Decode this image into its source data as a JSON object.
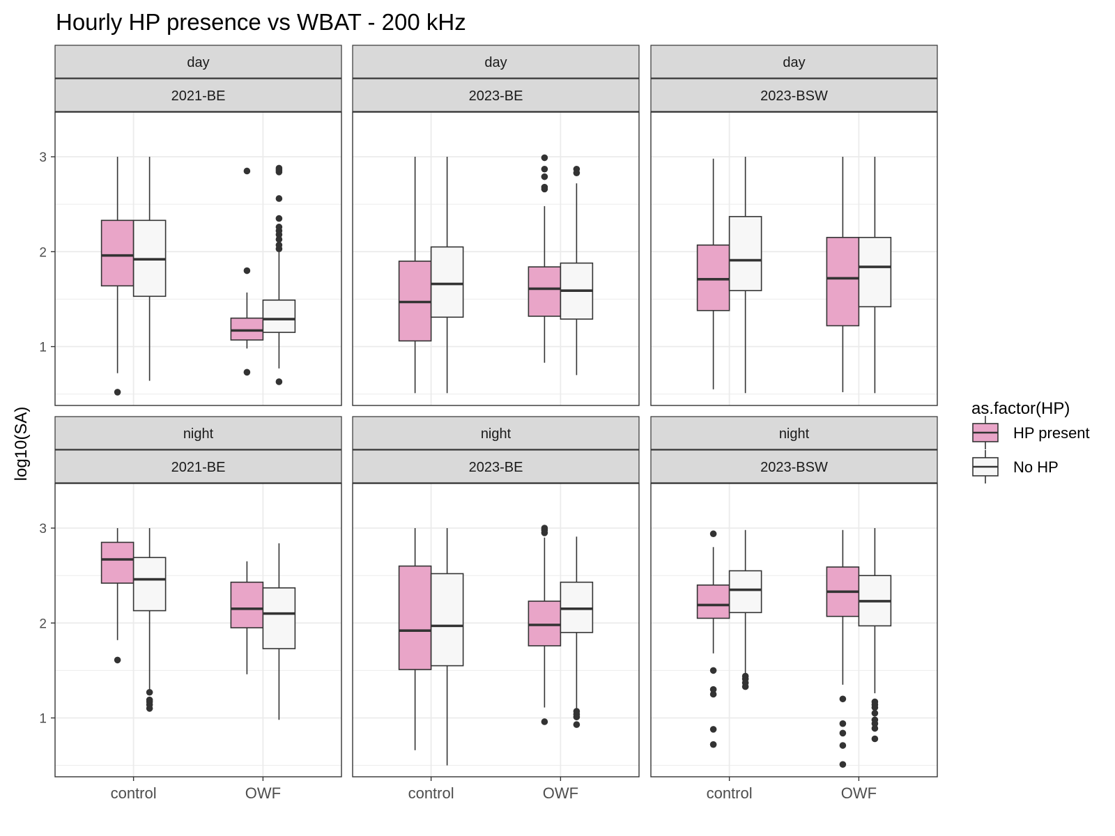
{
  "chart_data": {
    "type": "boxplot",
    "title": "Hourly HP presence vs WBAT - 200 kHz",
    "ylabel": "log10(SA)",
    "xlabel": "",
    "ylim": [
      0.38,
      3.47
    ],
    "y_ticks": [
      1,
      2,
      3
    ],
    "categories": [
      "control",
      "OWF"
    ],
    "grid": true,
    "legend": {
      "title": "as.factor(HP)",
      "position": "right",
      "entries": [
        {
          "label": "HP present",
          "color": "#E9A5C8"
        },
        {
          "label": "No HP",
          "color": "#F7F7F7"
        }
      ]
    },
    "colors": {
      "HP present": "#E9A5C8",
      "No HP": "#F7F7F7",
      "strip": "#D9D9D9",
      "grid": "#EBEBEB",
      "stroke": "#333333"
    },
    "panels": [
      {
        "time": "day",
        "site": "2021-BE",
        "boxes": [
          {
            "category": "control",
            "group": "HP present",
            "lower_whisker": 0.72,
            "q1": 1.64,
            "median": 1.96,
            "q3": 2.33,
            "upper_whisker": 3.0,
            "outliers": [
              0.52
            ]
          },
          {
            "category": "control",
            "group": "No HP",
            "lower_whisker": 0.64,
            "q1": 1.53,
            "median": 1.92,
            "q3": 2.33,
            "upper_whisker": 3.0,
            "outliers": []
          },
          {
            "category": "OWF",
            "group": "HP present",
            "lower_whisker": 0.98,
            "q1": 1.07,
            "median": 1.17,
            "q3": 1.3,
            "upper_whisker": 1.57,
            "outliers": [
              0.73,
              1.8,
              2.85
            ]
          },
          {
            "category": "OWF",
            "group": "No HP",
            "lower_whisker": 0.77,
            "q1": 1.15,
            "median": 1.29,
            "q3": 1.49,
            "upper_whisker": 2.0,
            "outliers": [
              0.63,
              2.03,
              2.07,
              2.13,
              2.18,
              2.22,
              2.26,
              2.35,
              2.56,
              2.84,
              2.86,
              2.88
            ]
          }
        ]
      },
      {
        "time": "day",
        "site": "2023-BE",
        "boxes": [
          {
            "category": "control",
            "group": "HP present",
            "lower_whisker": 0.51,
            "q1": 1.06,
            "median": 1.47,
            "q3": 1.9,
            "upper_whisker": 3.0,
            "outliers": []
          },
          {
            "category": "control",
            "group": "No HP",
            "lower_whisker": 0.51,
            "q1": 1.31,
            "median": 1.66,
            "q3": 2.05,
            "upper_whisker": 3.0,
            "outliers": []
          },
          {
            "category": "OWF",
            "group": "HP present",
            "lower_whisker": 0.83,
            "q1": 1.32,
            "median": 1.61,
            "q3": 1.84,
            "upper_whisker": 2.48,
            "outliers": [
              2.66,
              2.68,
              2.79,
              2.87,
              2.99
            ]
          },
          {
            "category": "OWF",
            "group": "No HP",
            "lower_whisker": 0.7,
            "q1": 1.29,
            "median": 1.59,
            "q3": 1.88,
            "upper_whisker": 2.72,
            "outliers": [
              2.83,
              2.87
            ]
          }
        ]
      },
      {
        "time": "day",
        "site": "2023-BSW",
        "boxes": [
          {
            "category": "control",
            "group": "HP present",
            "lower_whisker": 0.55,
            "q1": 1.38,
            "median": 1.71,
            "q3": 2.07,
            "upper_whisker": 2.98,
            "outliers": []
          },
          {
            "category": "control",
            "group": "No HP",
            "lower_whisker": 0.51,
            "q1": 1.59,
            "median": 1.91,
            "q3": 2.37,
            "upper_whisker": 3.0,
            "outliers": []
          },
          {
            "category": "OWF",
            "group": "HP present",
            "lower_whisker": 0.52,
            "q1": 1.22,
            "median": 1.72,
            "q3": 2.15,
            "upper_whisker": 3.0,
            "outliers": []
          },
          {
            "category": "OWF",
            "group": "No HP",
            "lower_whisker": 0.51,
            "q1": 1.42,
            "median": 1.84,
            "q3": 2.15,
            "upper_whisker": 3.0,
            "outliers": []
          }
        ]
      },
      {
        "time": "night",
        "site": "2021-BE",
        "boxes": [
          {
            "category": "control",
            "group": "HP present",
            "lower_whisker": 1.82,
            "q1": 2.42,
            "median": 2.67,
            "q3": 2.85,
            "upper_whisker": 3.0,
            "outliers": [
              1.61
            ]
          },
          {
            "category": "control",
            "group": "No HP",
            "lower_whisker": 1.29,
            "q1": 2.13,
            "median": 2.46,
            "q3": 2.69,
            "upper_whisker": 3.0,
            "outliers": [
              1.1,
              1.14,
              1.17,
              1.19,
              1.27
            ]
          },
          {
            "category": "OWF",
            "group": "HP present",
            "lower_whisker": 1.46,
            "q1": 1.95,
            "median": 2.15,
            "q3": 2.43,
            "upper_whisker": 2.65,
            "outliers": []
          },
          {
            "category": "OWF",
            "group": "No HP",
            "lower_whisker": 0.98,
            "q1": 1.73,
            "median": 2.1,
            "q3": 2.37,
            "upper_whisker": 2.84,
            "outliers": []
          }
        ]
      },
      {
        "time": "night",
        "site": "2023-BE",
        "boxes": [
          {
            "category": "control",
            "group": "HP present",
            "lower_whisker": 0.66,
            "q1": 1.51,
            "median": 1.92,
            "q3": 2.6,
            "upper_whisker": 3.0,
            "outliers": []
          },
          {
            "category": "control",
            "group": "No HP",
            "lower_whisker": 0.5,
            "q1": 1.55,
            "median": 1.97,
            "q3": 2.52,
            "upper_whisker": 3.0,
            "outliers": []
          },
          {
            "category": "OWF",
            "group": "HP present",
            "lower_whisker": 1.11,
            "q1": 1.76,
            "median": 1.98,
            "q3": 2.23,
            "upper_whisker": 2.9,
            "outliers": [
              0.96,
              2.95,
              2.98,
              3.0
            ]
          },
          {
            "category": "OWF",
            "group": "No HP",
            "lower_whisker": 1.09,
            "q1": 1.9,
            "median": 2.15,
            "q3": 2.43,
            "upper_whisker": 2.91,
            "outliers": [
              0.93,
              1.01,
              1.04,
              1.07
            ]
          }
        ]
      },
      {
        "time": "night",
        "site": "2023-BSW",
        "boxes": [
          {
            "category": "control",
            "group": "HP present",
            "lower_whisker": 1.68,
            "q1": 2.05,
            "median": 2.19,
            "q3": 2.4,
            "upper_whisker": 2.8,
            "outliers": [
              0.72,
              0.88,
              1.25,
              1.3,
              1.5,
              2.94
            ]
          },
          {
            "category": "control",
            "group": "No HP",
            "lower_whisker": 1.46,
            "q1": 2.11,
            "median": 2.35,
            "q3": 2.55,
            "upper_whisker": 2.98,
            "outliers": [
              1.33,
              1.37,
              1.41,
              1.44
            ]
          },
          {
            "category": "OWF",
            "group": "HP present",
            "lower_whisker": 1.35,
            "q1": 2.07,
            "median": 2.33,
            "q3": 2.59,
            "upper_whisker": 2.98,
            "outliers": [
              0.51,
              0.71,
              0.84,
              0.94,
              1.2
            ]
          },
          {
            "category": "OWF",
            "group": "No HP",
            "lower_whisker": 1.26,
            "q1": 1.97,
            "median": 2.23,
            "q3": 2.5,
            "upper_whisker": 3.0,
            "outliers": [
              0.78,
              0.89,
              0.94,
              0.98,
              1.05,
              1.11,
              1.14,
              1.17
            ]
          }
        ]
      }
    ]
  }
}
